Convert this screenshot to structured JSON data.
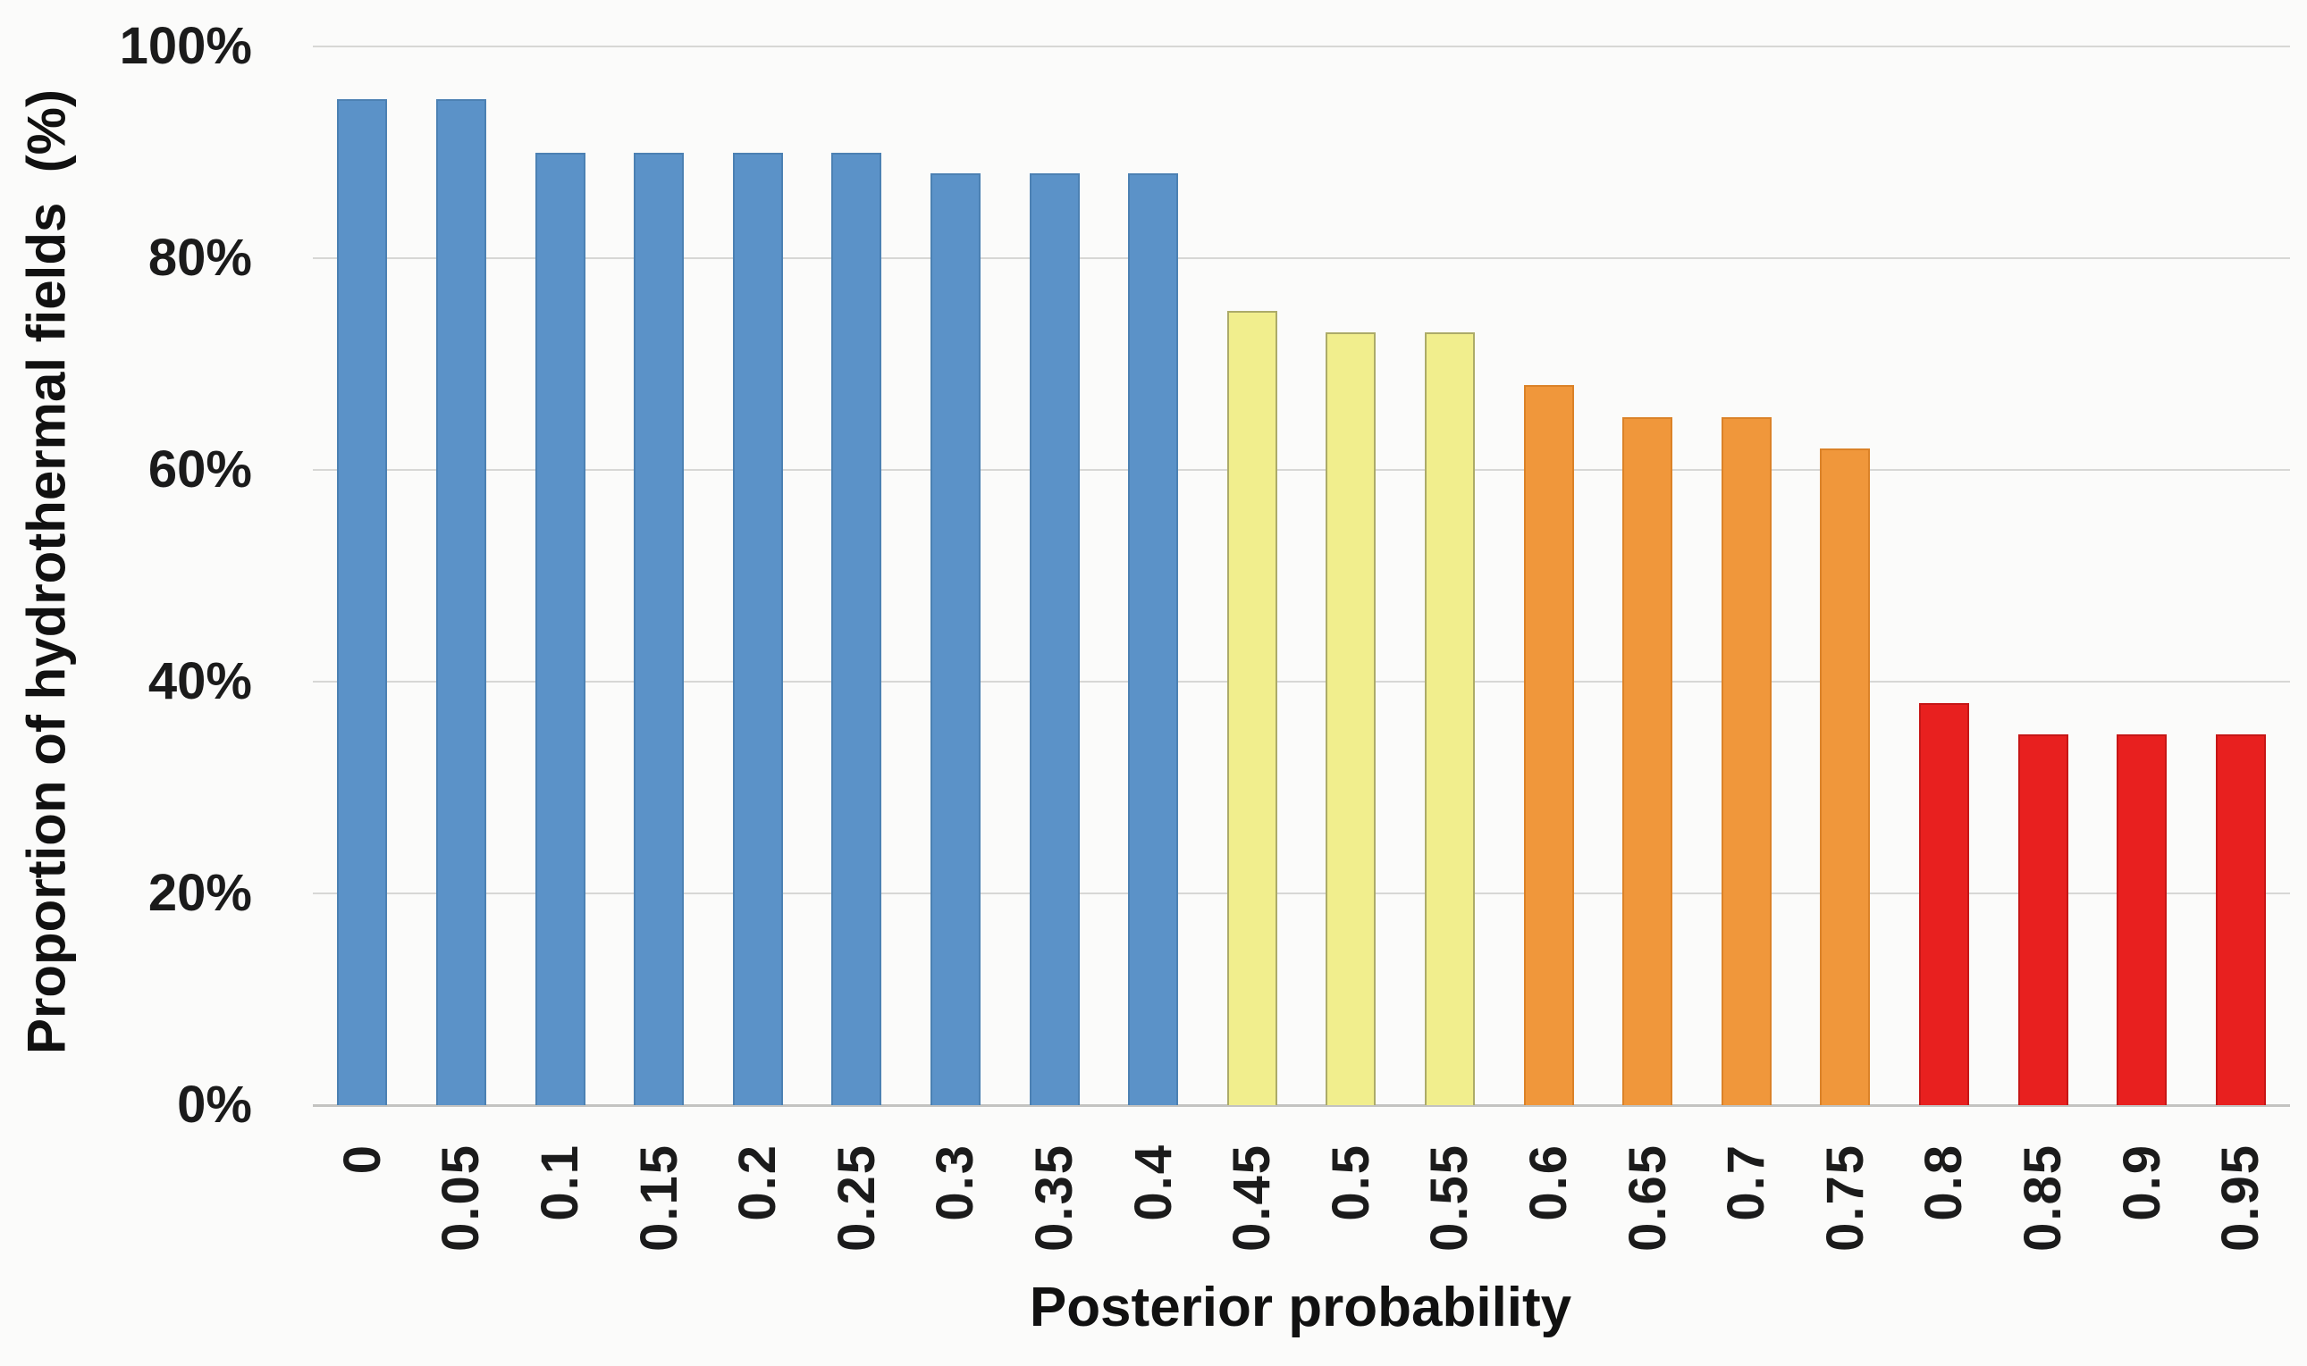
{
  "figure": {
    "y_axis_title": "Proportion of hydrothermal fields  (%)",
    "x_axis_title": "Posterior probability"
  },
  "chart_data": {
    "type": "bar",
    "title": "",
    "xlabel": "Posterior probability",
    "ylabel": "Proportion of hydrothermal fields (%)",
    "categories": [
      "0",
      "0.05",
      "0.1",
      "0.15",
      "0.2",
      "0.25",
      "0.3",
      "0.35",
      "0.4",
      "0.45",
      "0.5",
      "0.55",
      "0.6",
      "0.65",
      "0.7",
      "0.75",
      "0.8",
      "0.85",
      "0.9",
      "0.95"
    ],
    "values": [
      95,
      95,
      90,
      90,
      90,
      90,
      88,
      88,
      88,
      75,
      73,
      73,
      68,
      65,
      65,
      62,
      38,
      35,
      35,
      35
    ],
    "unit": "%",
    "ylim": [
      0,
      100
    ],
    "yticks": [
      {
        "label": "0%",
        "value": 0
      },
      {
        "label": "20%",
        "value": 20
      },
      {
        "label": "40%",
        "value": 40
      },
      {
        "label": "60%",
        "value": 60
      },
      {
        "label": "80%",
        "value": 80
      },
      {
        "label": "100%",
        "value": 100
      }
    ],
    "grid": "horizontal",
    "legend": "none",
    "color_groups": [
      {
        "name": "blue",
        "fill": "#5B92C8",
        "border": "#4C81B3",
        "categories": "0 to 0.4"
      },
      {
        "name": "yellow",
        "fill": "#F1EE8D",
        "border": "#ACAB69",
        "categories": "0.45 to 0.55"
      },
      {
        "name": "orange",
        "fill": "#F0973B",
        "border": "#DB8228",
        "categories": "0.6 to 0.75"
      },
      {
        "name": "red",
        "fill": "#E8201F",
        "border": "#C61616",
        "categories": "0.8 to 0.95"
      }
    ],
    "bar_group_index": [
      0,
      0,
      0,
      0,
      0,
      0,
      0,
      0,
      0,
      1,
      1,
      1,
      2,
      2,
      2,
      2,
      3,
      3,
      3,
      3
    ]
  }
}
